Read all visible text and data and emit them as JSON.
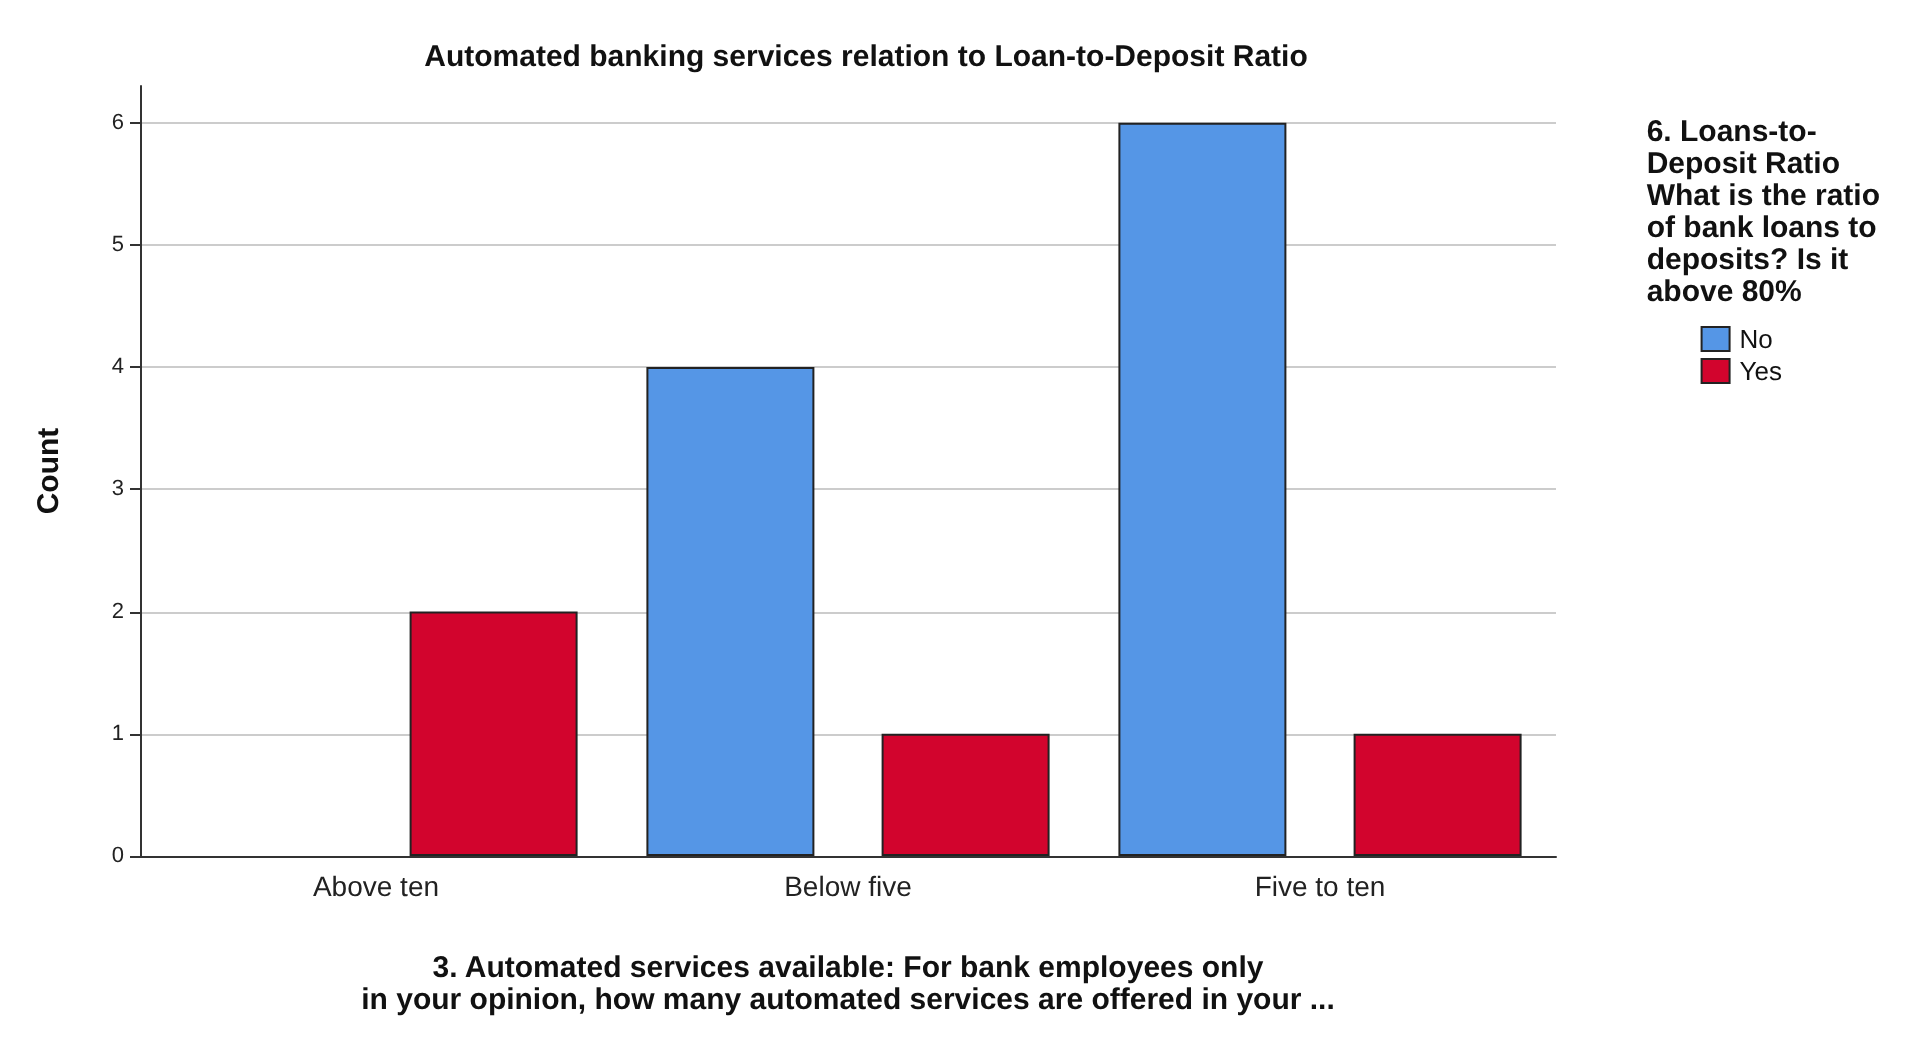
{
  "chart_data": {
    "type": "bar",
    "title": "Automated banking services relation to Loan-to-Deposit Ratio",
    "xlabel": "3. Automated services available: For bank employees only\nin your opinion, how many automated services are offered in your ...",
    "ylabel": "Count",
    "legend_title": "6. Loans-to-\nDeposit Ratio\nWhat is the ratio\nof bank loans to\ndeposits? Is it\nabove 80%",
    "categories": [
      "Above ten",
      "Below five",
      "Five to ten"
    ],
    "series": [
      {
        "name": "No",
        "color": "#5596e6",
        "values": [
          null,
          4,
          6
        ]
      },
      {
        "name": "Yes",
        "color": "#d2042d",
        "values": [
          2,
          1,
          1
        ]
      }
    ],
    "ylim": [
      0,
      6.3
    ],
    "yticks": [
      0,
      1,
      2,
      3,
      4,
      5,
      6
    ],
    "grid": "y",
    "legend": "top right"
  }
}
